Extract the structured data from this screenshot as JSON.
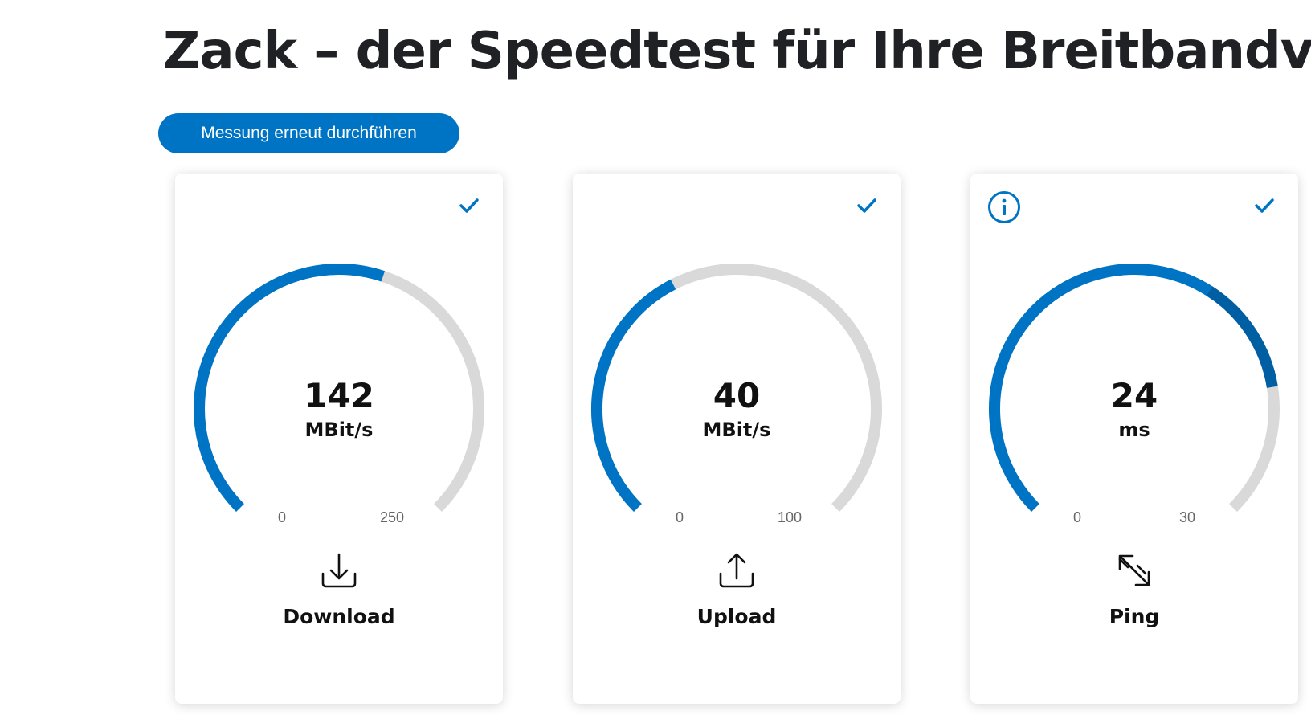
{
  "header": {
    "title": "Zack – der Speedtest für Ihre Breitbandverbin"
  },
  "actions": {
    "rerun_label": "Messung erneut durchführen"
  },
  "colors": {
    "accent": "#0074c4",
    "track": "#d9d9d9",
    "ping_tip": "#005fa3"
  },
  "metrics": [
    {
      "label": "Download",
      "value": "142",
      "unit": "MBit/s",
      "scale_min": "0",
      "scale_max": "250",
      "fill_fraction": 0.568,
      "icon": "download-icon",
      "has_info": false
    },
    {
      "label": "Upload",
      "value": "40",
      "unit": "MBit/s",
      "scale_min": "0",
      "scale_max": "100",
      "fill_fraction": 0.4,
      "icon": "upload-icon",
      "has_info": false
    },
    {
      "label": "Ping",
      "value": "24",
      "unit": "ms",
      "scale_min": "0",
      "scale_max": "30",
      "fill_fraction": 0.8,
      "icon": "ping-arrows-icon",
      "has_info": true
    }
  ]
}
